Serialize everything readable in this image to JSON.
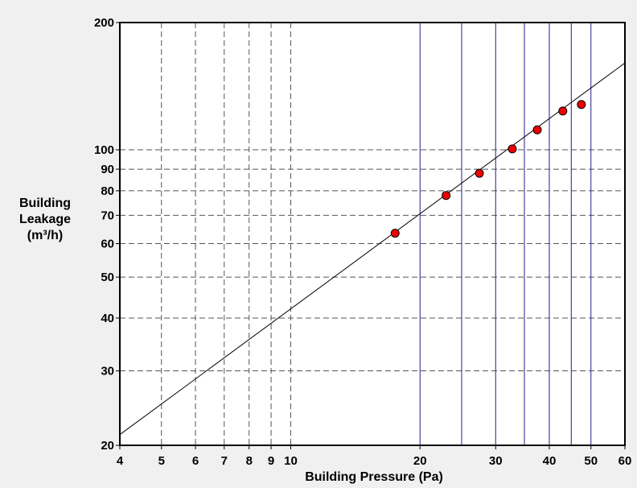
{
  "chart_data": {
    "type": "scatter",
    "x_scale": "log",
    "y_scale": "log",
    "xlabel": "Building Pressure (Pa)",
    "ylabel_lines": [
      "Building",
      "Leakage",
      "(m³/h)"
    ],
    "xlim": [
      4,
      60
    ],
    "ylim": [
      20,
      200
    ],
    "x_ticks": [
      4,
      5,
      6,
      7,
      8,
      9,
      10,
      20,
      30,
      40,
      50,
      60
    ],
    "y_ticks": [
      20,
      30,
      40,
      50,
      60,
      70,
      80,
      90,
      100,
      200
    ],
    "x_dashed_grid": [
      5,
      6,
      7,
      8,
      9,
      10
    ],
    "x_solid_grid": [
      20,
      25,
      30,
      35,
      40,
      45,
      50
    ],
    "y_dashed_grid": [
      30,
      40,
      50,
      60,
      70,
      80,
      90,
      100
    ],
    "series": [
      {
        "points": [
          {
            "x": 17.5,
            "y": 63.5
          },
          {
            "x": 23.0,
            "y": 78.0
          },
          {
            "x": 27.5,
            "y": 88.0
          },
          {
            "x": 32.8,
            "y": 100.5
          },
          {
            "x": 37.5,
            "y": 111.5
          },
          {
            "x": 43.0,
            "y": 123.5
          },
          {
            "x": 47.5,
            "y": 128.0
          }
        ]
      }
    ],
    "fit_line": [
      {
        "x": 4,
        "y": 21.2
      },
      {
        "x": 60,
        "y": 160.5
      }
    ],
    "colors": {
      "background": "#f0f0f0",
      "plot_area": "#ffffff",
      "point_fill": "#ee0000",
      "solid_grid": "#1f1f8f",
      "dashed_grid": "#555555",
      "fit_line": "#000000"
    }
  }
}
